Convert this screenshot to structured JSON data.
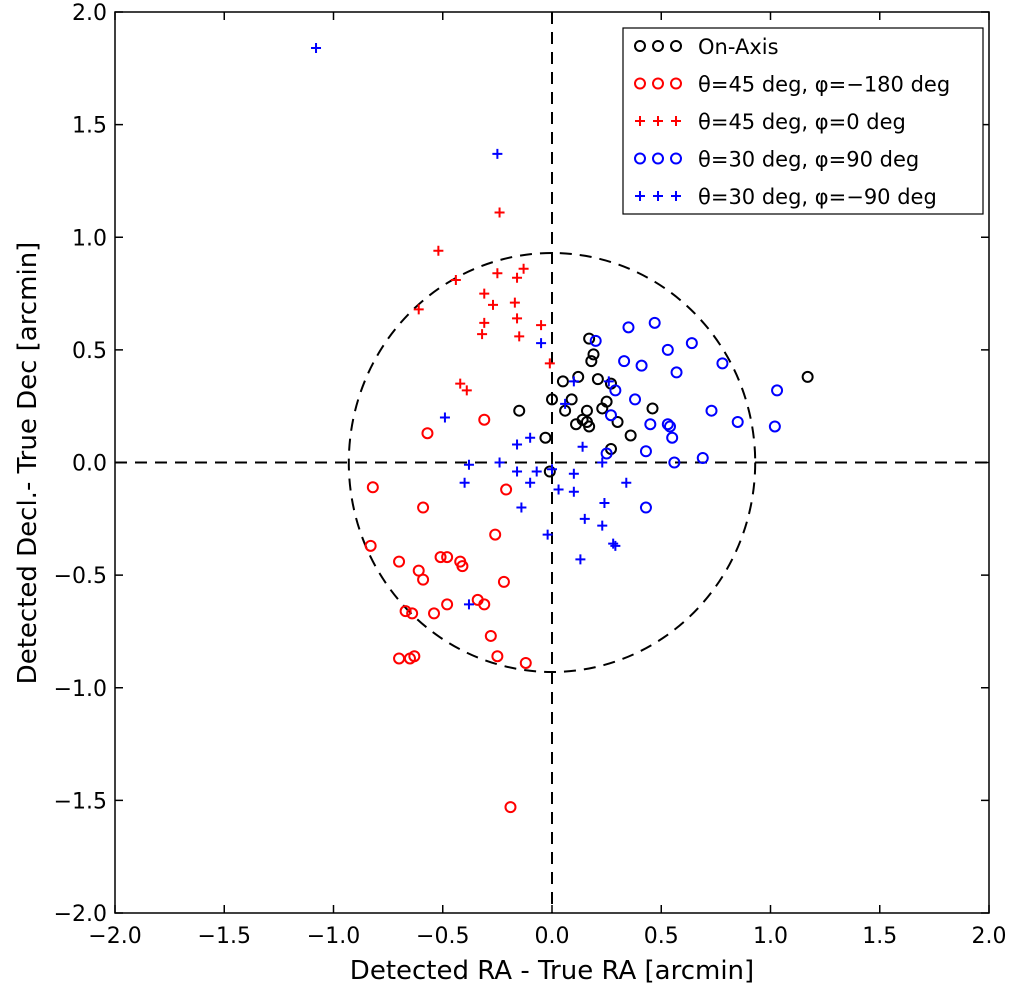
{
  "chart_data": {
    "type": "scatter",
    "xlabel": "Detected RA - True RA [arcmin]",
    "ylabel": "Detected Decl.- True Dec [arcmin]",
    "xlim": [
      -2.0,
      2.0
    ],
    "ylim": [
      -2.0,
      2.0
    ],
    "xticks": [
      "−2.0",
      "−1.5",
      "−1.0",
      "−0.5",
      "0.0",
      "0.5",
      "1.0",
      "1.5",
      "2.0"
    ],
    "yticks": [
      "−2.0",
      "−1.5",
      "−1.0",
      "−0.5",
      "0.0",
      "0.5",
      "1.0",
      "1.5",
      "2.0"
    ],
    "grid": false,
    "legend_position": "top-right",
    "reference_circle_radius": 0.93,
    "reference_lines": {
      "x": 0,
      "y": 0,
      "style": "dashed"
    },
    "series": [
      {
        "name": "On-Axis",
        "marker": "circle",
        "color": "#000000",
        "points": [
          [
            0.17,
            0.55
          ],
          [
            0.19,
            0.48
          ],
          [
            0.18,
            0.45
          ],
          [
            0.12,
            0.38
          ],
          [
            0.05,
            0.36
          ],
          [
            0.21,
            0.37
          ],
          [
            0.27,
            0.35
          ],
          [
            0.0,
            0.28
          ],
          [
            0.09,
            0.28
          ],
          [
            0.25,
            0.27
          ],
          [
            -0.15,
            0.23
          ],
          [
            0.06,
            0.23
          ],
          [
            0.16,
            0.23
          ],
          [
            0.23,
            0.24
          ],
          [
            0.46,
            0.24
          ],
          [
            0.14,
            0.19
          ],
          [
            0.11,
            0.17
          ],
          [
            0.16,
            0.18
          ],
          [
            0.17,
            0.16
          ],
          [
            0.3,
            0.18
          ],
          [
            0.36,
            0.12
          ],
          [
            -0.03,
            0.11
          ],
          [
            0.27,
            0.06
          ],
          [
            -0.01,
            -0.04
          ],
          [
            1.17,
            0.38
          ]
        ]
      },
      {
        "name": "θ=45 deg, φ=−180 deg",
        "marker": "circle",
        "color": "#ff0000",
        "points": [
          [
            -0.31,
            0.19
          ],
          [
            -0.57,
            0.13
          ],
          [
            -0.21,
            -0.12
          ],
          [
            -0.82,
            -0.11
          ],
          [
            -0.59,
            -0.2
          ],
          [
            -0.26,
            -0.32
          ],
          [
            -0.83,
            -0.37
          ],
          [
            -0.7,
            -0.44
          ],
          [
            -0.51,
            -0.42
          ],
          [
            -0.48,
            -0.42
          ],
          [
            -0.61,
            -0.48
          ],
          [
            -0.42,
            -0.44
          ],
          [
            -0.41,
            -0.46
          ],
          [
            -0.59,
            -0.52
          ],
          [
            -0.22,
            -0.53
          ],
          [
            -0.34,
            -0.61
          ],
          [
            -0.31,
            -0.63
          ],
          [
            -0.48,
            -0.63
          ],
          [
            -0.54,
            -0.67
          ],
          [
            -0.67,
            -0.66
          ],
          [
            -0.64,
            -0.67
          ],
          [
            -0.28,
            -0.77
          ],
          [
            -0.25,
            -0.86
          ],
          [
            -0.12,
            -0.89
          ],
          [
            -0.7,
            -0.87
          ],
          [
            -0.65,
            -0.87
          ],
          [
            -0.63,
            -0.86
          ],
          [
            -0.19,
            -1.53
          ]
        ]
      },
      {
        "name": "θ=45 deg, φ=0 deg",
        "marker": "plus",
        "color": "#ff0000",
        "points": [
          [
            -0.52,
            0.94
          ],
          [
            -0.24,
            1.11
          ],
          [
            -0.13,
            0.86
          ],
          [
            -0.25,
            0.84
          ],
          [
            -0.16,
            0.82
          ],
          [
            -0.44,
            0.81
          ],
          [
            -0.31,
            0.75
          ],
          [
            -0.27,
            0.7
          ],
          [
            -0.17,
            0.71
          ],
          [
            -0.61,
            0.68
          ],
          [
            -0.31,
            0.62
          ],
          [
            -0.16,
            0.64
          ],
          [
            -0.05,
            0.61
          ],
          [
            -0.32,
            0.57
          ],
          [
            -0.15,
            0.56
          ],
          [
            -0.01,
            0.44
          ],
          [
            -0.42,
            0.35
          ],
          [
            -0.39,
            0.32
          ]
        ]
      },
      {
        "name": "θ=30 deg, φ=90 deg",
        "marker": "circle",
        "color": "#0000ff",
        "points": [
          [
            0.35,
            0.6
          ],
          [
            0.47,
            0.62
          ],
          [
            0.2,
            0.54
          ],
          [
            0.53,
            0.5
          ],
          [
            0.64,
            0.53
          ],
          [
            0.33,
            0.45
          ],
          [
            0.41,
            0.43
          ],
          [
            0.57,
            0.4
          ],
          [
            0.78,
            0.44
          ],
          [
            1.03,
            0.32
          ],
          [
            0.29,
            0.32
          ],
          [
            0.38,
            0.28
          ],
          [
            0.73,
            0.23
          ],
          [
            0.27,
            0.21
          ],
          [
            0.45,
            0.17
          ],
          [
            0.53,
            0.17
          ],
          [
            0.54,
            0.16
          ],
          [
            0.85,
            0.18
          ],
          [
            1.02,
            0.16
          ],
          [
            0.55,
            0.11
          ],
          [
            0.43,
            0.05
          ],
          [
            0.25,
            0.04
          ],
          [
            0.56,
            0.0
          ],
          [
            0.69,
            0.02
          ],
          [
            0.43,
            -0.2
          ]
        ]
      },
      {
        "name": "θ=30 deg, φ=−90 deg",
        "marker": "plus",
        "color": "#0000ff",
        "points": [
          [
            -1.08,
            1.84
          ],
          [
            -0.25,
            1.37
          ],
          [
            -0.05,
            0.53
          ],
          [
            0.1,
            0.36
          ],
          [
            0.26,
            0.36
          ],
          [
            0.06,
            0.26
          ],
          [
            -0.49,
            0.2
          ],
          [
            -0.1,
            0.11
          ],
          [
            -0.16,
            0.08
          ],
          [
            0.14,
            0.07
          ],
          [
            -0.38,
            -0.01
          ],
          [
            -0.24,
            0.0
          ],
          [
            0.23,
            0.0
          ],
          [
            -0.16,
            -0.04
          ],
          [
            -0.07,
            -0.04
          ],
          [
            0.0,
            -0.03
          ],
          [
            0.1,
            -0.05
          ],
          [
            -0.4,
            -0.09
          ],
          [
            -0.1,
            -0.09
          ],
          [
            0.03,
            -0.12
          ],
          [
            0.1,
            -0.13
          ],
          [
            0.34,
            -0.09
          ],
          [
            -0.14,
            -0.2
          ],
          [
            0.24,
            -0.18
          ],
          [
            0.15,
            -0.25
          ],
          [
            0.23,
            -0.28
          ],
          [
            -0.02,
            -0.32
          ],
          [
            0.28,
            -0.36
          ],
          [
            0.29,
            -0.37
          ],
          [
            0.13,
            -0.43
          ],
          [
            -0.38,
            -0.63
          ]
        ]
      }
    ]
  }
}
